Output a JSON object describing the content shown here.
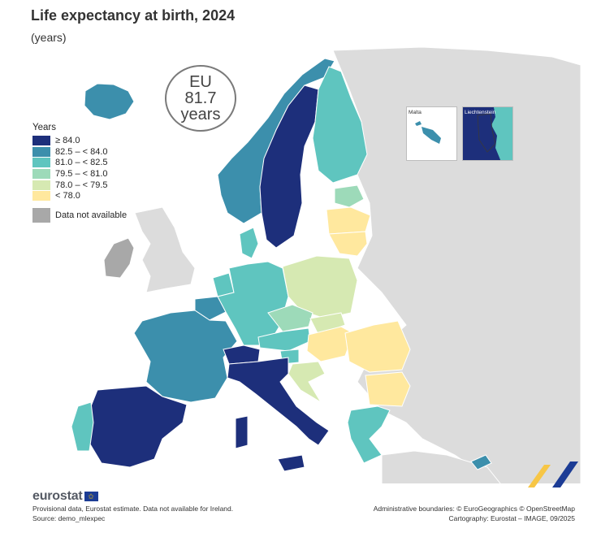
{
  "header": {
    "title": "Life expectancy at birth, 2024",
    "subtitle": "(years)"
  },
  "eu_badge": {
    "line1": "EU",
    "line2": "81.7",
    "line3": "years"
  },
  "legend": {
    "title": "Years",
    "classes": [
      {
        "label": "≥ 84.0",
        "color": "#1d2f7b"
      },
      {
        "label": "82.5 – < 84.0",
        "color": "#3c8fac"
      },
      {
        "label": "81.0 – < 82.5",
        "color": "#5fc5bf"
      },
      {
        "label": "79.5 – < 81.0",
        "color": "#9ddab9"
      },
      {
        "label": "78.0 – < 79.5",
        "color": "#d6e9b2"
      },
      {
        "label": "< 78.0",
        "color": "#ffe89e"
      }
    ],
    "na_label": "Data not available",
    "na_color": "#a8a8a8"
  },
  "insets": {
    "malta": "Malta",
    "liechtenstein": "Liechtenstein"
  },
  "map_colors": {
    "sea": "#ffffff",
    "non_covered": "#dcdcdc",
    "border": "#3a3a3a"
  },
  "footer": {
    "logo_text": "eurostat",
    "note1": "Provisional data, Eurostat estimate. Data not available for Ireland.",
    "note2": "Source: demo_mlexpec",
    "credit1": "Administrative boundaries: © EuroGeographics © OpenStreetMap",
    "credit2": "Cartography: Eurostat – IMAGE, 09/2025"
  }
}
